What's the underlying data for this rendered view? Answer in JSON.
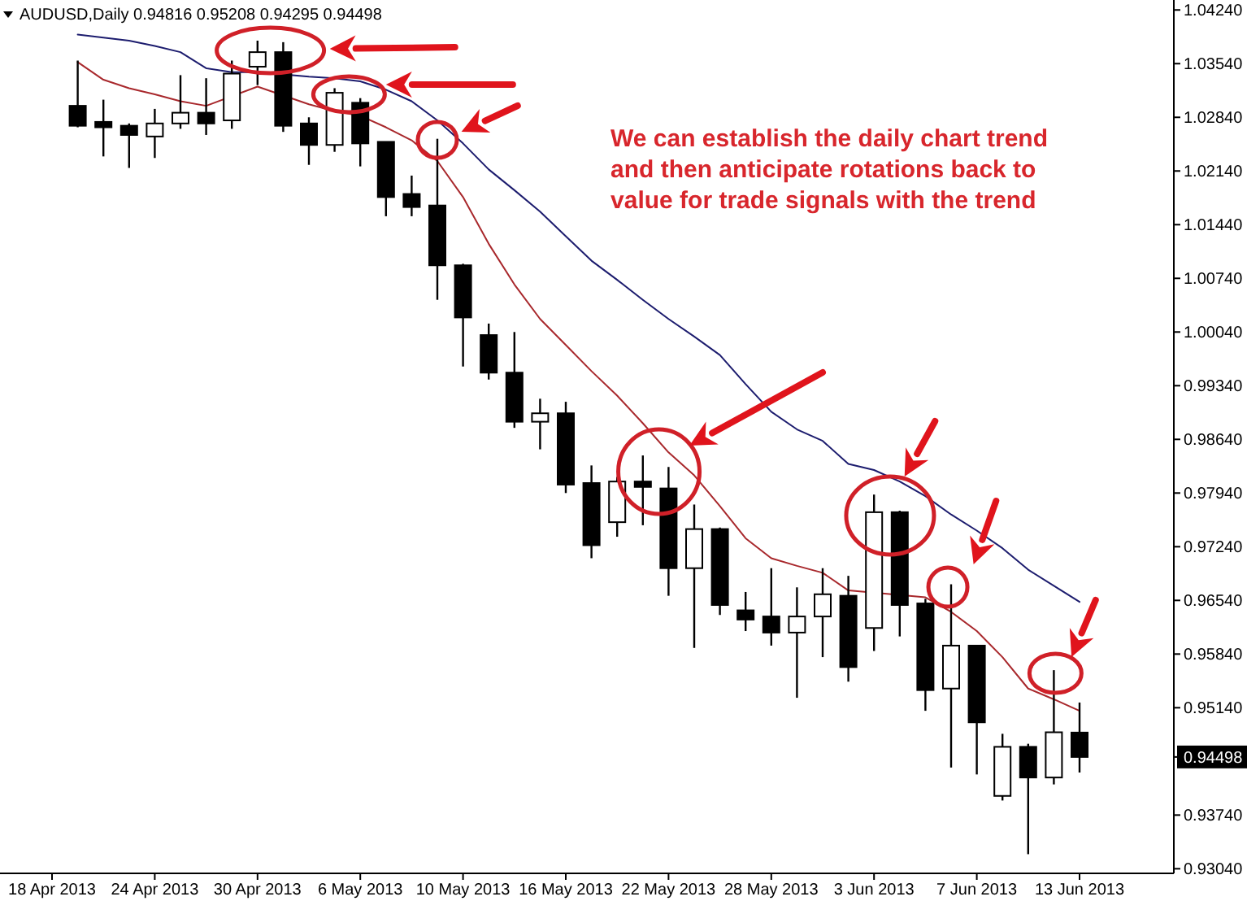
{
  "chart_data": {
    "type": "candlestick",
    "title": "AUDUSD,Daily 0.94816 0.95208 0.94295 0.94498",
    "categories": [
      "18 Apr 2013",
      null,
      null,
      null,
      "24 Apr 2013",
      null,
      null,
      null,
      "30 Apr 2013",
      null,
      null,
      null,
      "6 May 2013",
      null,
      null,
      null,
      "10 May 2013",
      null,
      null,
      null,
      "16 May 2013",
      null,
      null,
      null,
      "22 May 2013",
      null,
      null,
      null,
      "28 May 2013",
      null,
      null,
      null,
      "3 Jun 2013",
      null,
      null,
      null,
      "7 Jun 2013",
      null,
      null,
      null,
      "13 Jun 2013"
    ],
    "ohlc": [
      null,
      [
        1.0299,
        1.0358,
        1.0271,
        1.0273
      ],
      [
        1.0278,
        1.0307,
        1.0233,
        1.0271
      ],
      [
        1.0273,
        1.0276,
        1.0218,
        1.0261
      ],
      [
        1.0259,
        1.0295,
        1.0231,
        1.0276
      ],
      [
        1.0276,
        1.0339,
        1.0269,
        1.029
      ],
      [
        1.029,
        1.0335,
        1.0261,
        1.0276
      ],
      [
        1.028,
        1.0358,
        1.0269,
        1.0341
      ],
      [
        1.035,
        1.0384,
        1.0326,
        1.0369
      ],
      [
        1.0369,
        1.0382,
        1.0265,
        1.0273
      ],
      [
        1.0276,
        1.0284,
        1.0222,
        1.0248
      ],
      [
        1.0248,
        1.0322,
        1.0239,
        1.0316
      ],
      [
        1.0303,
        1.0309,
        1.022,
        1.025
      ],
      [
        1.0252,
        1.0252,
        1.0155,
        1.018
      ],
      [
        1.0184,
        1.0208,
        1.0155,
        1.0167
      ],
      [
        1.0169,
        1.0256,
        1.0046,
        1.0091
      ],
      [
        1.0091,
        1.0093,
        0.9959,
        1.0023
      ],
      [
        1.0,
        1.0015,
        0.9942,
        0.9951
      ],
      [
        0.9951,
        1.0004,
        0.9879,
        0.9887
      ],
      [
        0.9887,
        0.9917,
        0.9851,
        0.9898
      ],
      [
        0.9898,
        0.9913,
        0.9794,
        0.9805
      ],
      [
        0.9807,
        0.983,
        0.9709,
        0.9726
      ],
      [
        0.9756,
        0.9815,
        0.9737,
        0.9809
      ],
      [
        0.9809,
        0.9843,
        0.9752,
        0.9802
      ],
      [
        0.98,
        0.9828,
        0.966,
        0.9696
      ],
      [
        0.9696,
        0.9779,
        0.9592,
        0.9747
      ],
      [
        0.9747,
        0.9749,
        0.9635,
        0.9648
      ],
      [
        0.9641,
        0.9665,
        0.9614,
        0.9629
      ],
      [
        0.9633,
        0.9696,
        0.9595,
        0.9612
      ],
      [
        0.9612,
        0.9671,
        0.9527,
        0.9633
      ],
      [
        0.9633,
        0.9696,
        0.958,
        0.9662
      ],
      [
        0.966,
        0.9686,
        0.9548,
        0.9567
      ],
      [
        0.9618,
        0.9792,
        0.9588,
        0.9769
      ],
      [
        0.9769,
        0.9771,
        0.9607,
        0.9648
      ],
      [
        0.965,
        0.9656,
        0.951,
        0.9537
      ],
      [
        0.9539,
        0.9675,
        0.9436,
        0.9595
      ],
      [
        0.9595,
        0.9595,
        0.9427,
        0.9495
      ],
      [
        0.9399,
        0.948,
        0.9393,
        0.9463
      ],
      [
        0.9463,
        0.9467,
        0.9323,
        0.9423
      ],
      [
        0.9423,
        0.9563,
        0.9414,
        0.9482
      ],
      [
        0.94816,
        0.95208,
        0.94295,
        0.94498
      ]
    ],
    "series": [
      {
        "type": "line",
        "color": "#a8282c",
        "values": [
          null,
          1.0356,
          1.0333,
          1.0322,
          1.0314,
          1.0305,
          1.0299,
          null,
          1.0324,
          null,
          1.0301,
          1.0292,
          1.0286,
          1.0271,
          1.0254,
          1.0227,
          1.018,
          1.0119,
          1.0066,
          1.0021,
          0.9987,
          0.9953,
          0.9921,
          0.9885,
          0.9847,
          0.9817,
          0.9777,
          0.9735,
          0.9709,
          0.9699,
          0.969,
          0.9667,
          null,
          null,
          0.9658,
          0.9639,
          0.9614,
          0.958,
          0.9539,
          0.9525,
          0.951
        ]
      },
      {
        "type": "line",
        "color": "#1c1c6e",
        "values": [
          null,
          1.0392,
          1.0388,
          1.0384,
          1.0377,
          1.0369,
          1.0348,
          1.0343,
          1.0343,
          null,
          1.0337,
          1.0335,
          1.0331,
          1.032,
          1.0305,
          1.028,
          1.025,
          1.0216,
          1.0189,
          1.0161,
          1.0129,
          1.0097,
          1.0072,
          1.0046,
          1.0021,
          0.9998,
          0.9974,
          0.9936,
          0.99,
          0.9877,
          0.9862,
          0.9832,
          0.9824,
          0.9809,
          0.979,
          0.9766,
          0.9745,
          0.9722,
          0.9694,
          0.9673,
          0.9652
        ]
      }
    ],
    "ylim": [
      0.9298,
      1.0437
    ],
    "yticks": [
      {
        "value": 1.0424,
        "label": "1.04240"
      },
      {
        "value": 1.0354,
        "label": "1.03540"
      },
      {
        "value": 1.0284,
        "label": "1.02840"
      },
      {
        "value": 1.0214,
        "label": "1.02140"
      },
      {
        "value": 1.0144,
        "label": "1.01440"
      },
      {
        "value": 1.0074,
        "label": "1.00740"
      },
      {
        "value": 1.0004,
        "label": "1.00040"
      },
      {
        "value": 0.9934,
        "label": "0.99340"
      },
      {
        "value": 0.9864,
        "label": "0.98640"
      },
      {
        "value": 0.9794,
        "label": "0.97940"
      },
      {
        "value": 0.9724,
        "label": "0.97240"
      },
      {
        "value": 0.9654,
        "label": "0.96540"
      },
      {
        "value": 0.9584,
        "label": "0.95840"
      },
      {
        "value": 0.9514,
        "label": "0.95140"
      },
      {
        "value": 0.94498,
        "label": "0.94498"
      },
      {
        "value": 0.9374,
        "label": "0.93740"
      },
      {
        "value": 0.9304,
        "label": "0.93040"
      }
    ],
    "annotations": [
      "We can establish the daily chart trend and then anticipate rotations back to value for trade signals with the trend"
    ]
  }
}
